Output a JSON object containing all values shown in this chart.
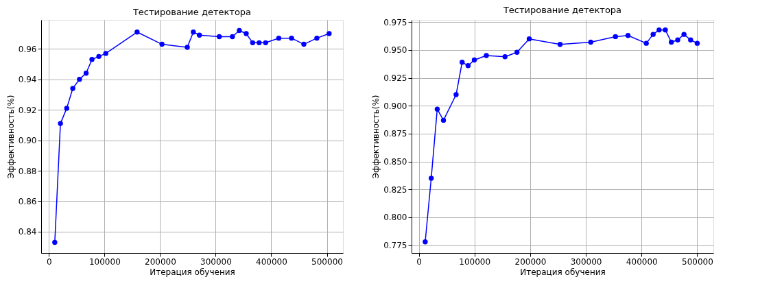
{
  "chart_data": [
    {
      "type": "line",
      "title": "Тестирование детектора",
      "xlabel": "Итерация обучения",
      "ylabel": "Эффективность(%)",
      "x": [
        10500,
        20700,
        32000,
        42900,
        54900,
        66900,
        77400,
        89800,
        102300,
        158600,
        203400,
        248900,
        259800,
        270700,
        306400,
        330100,
        342500,
        354900,
        366500,
        378200,
        389800,
        413500,
        436500,
        458600,
        482000,
        504100
      ],
      "series": [
        {
          "color": "#0000ff",
          "values": [
            0.833,
            0.911,
            0.921,
            0.934,
            0.94,
            0.944,
            0.953,
            0.955,
            0.957,
            0.971,
            0.963,
            0.961,
            0.971,
            0.969,
            0.968,
            0.968,
            0.972,
            0.97,
            0.964,
            0.964,
            0.964,
            0.967,
            0.967,
            0.963,
            0.967,
            0.97
          ]
        }
      ],
      "xlim": [
        -14000,
        529000
      ],
      "ylim": [
        0.826,
        0.979
      ],
      "xticks": [
        0,
        100000,
        200000,
        300000,
        400000,
        500000
      ],
      "yticks": [
        0.84,
        0.86,
        0.88,
        {
          "value": 0.9,
          "label": "0.90"
        },
        0.92,
        0.94,
        0.96
      ],
      "grid": true,
      "marker": "circle",
      "line_style": "solid"
    },
    {
      "type": "line",
      "title": "Тестирование детектора",
      "xlabel": "Итерация обучения",
      "ylabel": "Эффективность(%)",
      "x": [
        11500,
        22300,
        33100,
        44300,
        67000,
        77800,
        88500,
        99700,
        121300,
        154800,
        176300,
        198300,
        253700,
        308800,
        353100,
        375700,
        408500,
        420800,
        431500,
        442700,
        453500,
        465000,
        476200,
        488100,
        500000
      ],
      "series": [
        {
          "color": "#0000ff",
          "values": [
            0.778,
            0.835,
            0.897,
            0.887,
            0.91,
            0.939,
            0.936,
            0.941,
            0.945,
            0.944,
            0.948,
            0.96,
            0.955,
            0.957,
            0.962,
            0.963,
            0.956,
            0.964,
            0.968,
            0.968,
            0.957,
            0.959,
            0.964,
            0.959,
            0.956
          ]
        }
      ],
      "xlim": [
        -13000,
        529000
      ],
      "ylim": [
        0.768,
        0.977
      ],
      "xticks": [
        0,
        100000,
        200000,
        300000,
        400000,
        500000
      ],
      "yticks": [
        0.775,
        {
          "value": 0.8,
          "label": "0.800"
        },
        0.825,
        {
          "value": 0.85,
          "label": "0.850"
        },
        0.875,
        {
          "value": 0.9,
          "label": "0.900"
        },
        0.925,
        {
          "value": 0.95,
          "label": "0.950"
        },
        0.975
      ],
      "grid": true,
      "marker": "circle",
      "line_style": "solid"
    }
  ]
}
